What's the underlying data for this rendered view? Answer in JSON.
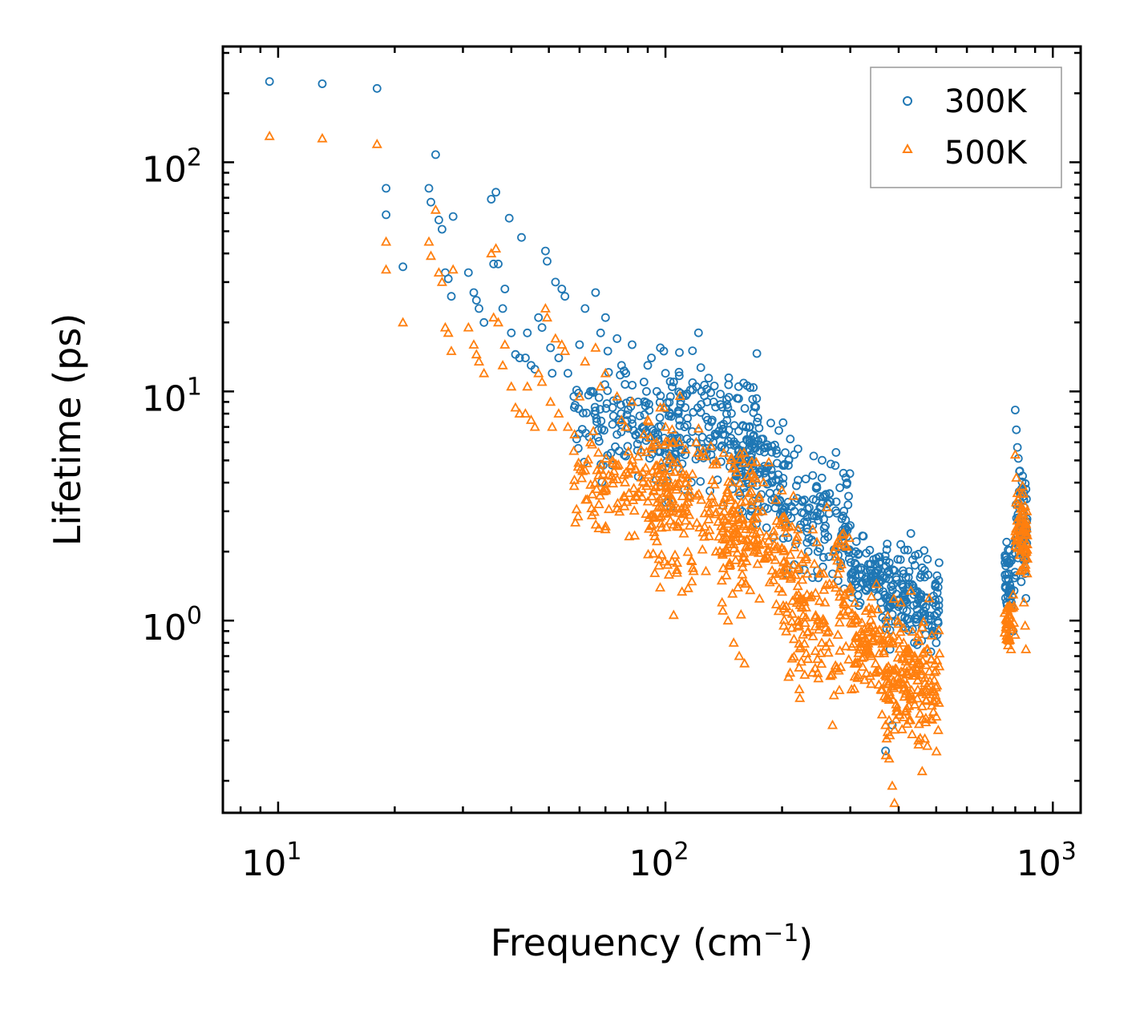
{
  "chart_data": {
    "type": "scatter",
    "title": "",
    "xlabel": "Frequency",
    "xlabel_unit": "(cm",
    "xlabel_unit_exp": "−1",
    "xlabel_unit_close": ")",
    "ylabel": "Lifetime (ps)",
    "xscale": "log",
    "yscale": "log",
    "xlim": [
      7.2,
      1180
    ],
    "ylim": [
      0.145,
      320
    ],
    "x_ticks": [
      {
        "value": 10,
        "base": "10",
        "exp": "1"
      },
      {
        "value": 100,
        "base": "10",
        "exp": "2"
      },
      {
        "value": 1000,
        "base": "10",
        "exp": "3"
      }
    ],
    "y_ticks": [
      {
        "value": 1,
        "base": "10",
        "exp": "0"
      },
      {
        "value": 10,
        "base": "10",
        "exp": "1"
      },
      {
        "value": 100,
        "base": "10",
        "exp": "2"
      }
    ],
    "legend_position": "top-right",
    "series": [
      {
        "name": "300K",
        "marker": "circle",
        "color": "#1f77b4",
        "points": [
          [
            9.5,
            225
          ],
          [
            13.0,
            220
          ],
          [
            18.0,
            210
          ],
          [
            19.0,
            77
          ],
          [
            19.0,
            59
          ],
          [
            21.0,
            35
          ],
          [
            24.5,
            77
          ],
          [
            24.8,
            67
          ],
          [
            25.5,
            108
          ],
          [
            26.0,
            56
          ],
          [
            26.5,
            51
          ],
          [
            27.0,
            33
          ],
          [
            27.5,
            31
          ],
          [
            28.0,
            26
          ],
          [
            28.3,
            58
          ],
          [
            31.0,
            33
          ],
          [
            32.0,
            27
          ],
          [
            32.5,
            25
          ],
          [
            33.0,
            23
          ],
          [
            34.0,
            20
          ],
          [
            35.5,
            69
          ],
          [
            36.0,
            36
          ],
          [
            36.5,
            74
          ],
          [
            37.0,
            36
          ],
          [
            38.0,
            23
          ],
          [
            38.5,
            28
          ],
          [
            39.5,
            57
          ],
          [
            40.0,
            18
          ],
          [
            41.0,
            14.5
          ],
          [
            42.0,
            14
          ],
          [
            42.5,
            47
          ],
          [
            43.5,
            14
          ],
          [
            44.0,
            18
          ],
          [
            45.0,
            13
          ],
          [
            46.0,
            12.5
          ],
          [
            47.0,
            21
          ],
          [
            48.0,
            19
          ],
          [
            49.0,
            41
          ],
          [
            49.5,
            37
          ],
          [
            50.5,
            15.5
          ],
          [
            51.0,
            12
          ],
          [
            52.0,
            30
          ],
          [
            53.0,
            14
          ],
          [
            54.0,
            28
          ],
          [
            55.0,
            26
          ],
          [
            56.0,
            12
          ],
          [
            58.0,
            9.5
          ],
          [
            60.0,
            16
          ],
          [
            62.0,
            23
          ],
          [
            64.0,
            10
          ],
          [
            66.0,
            27
          ],
          [
            68.0,
            18
          ],
          [
            70.0,
            21
          ],
          [
            71.0,
            15
          ],
          [
            73.0,
            8.5
          ],
          [
            75.0,
            17
          ],
          [
            77.0,
            13
          ],
          [
            79.0,
            12
          ],
          [
            82.0,
            16
          ],
          [
            85.0,
            9
          ],
          [
            88.0,
            11
          ],
          [
            90.0,
            13
          ],
          [
            92.0,
            14
          ],
          [
            95.0,
            10
          ],
          [
            97.0,
            15.5
          ],
          [
            99.0,
            15
          ],
          [
            100.0,
            12
          ],
          [
            103.0,
            9.5
          ],
          [
            105.0,
            11
          ],
          [
            108.0,
            8
          ],
          [
            112.0,
            7
          ],
          [
            116.0,
            6
          ],
          [
            120.0,
            10.5
          ],
          [
            124.0,
            10
          ],
          [
            128.0,
            9
          ],
          [
            132.0,
            7.5
          ],
          [
            136.0,
            6.5
          ],
          [
            140.0,
            5.8
          ],
          [
            146.0,
            5.2
          ],
          [
            152.0,
            5.0
          ],
          [
            158.0,
            5.5
          ],
          [
            164.0,
            5.0
          ],
          [
            170.0,
            5.9
          ],
          [
            175.0,
            5.5
          ],
          [
            180.0,
            4.4
          ],
          [
            186.0,
            3.6
          ],
          [
            192.0,
            3.1
          ],
          [
            198.0,
            2.9
          ],
          [
            204.0,
            2.6
          ],
          [
            210.0,
            6.2
          ],
          [
            215.0,
            5.3
          ],
          [
            220.0,
            4.1
          ],
          [
            226.0,
            3.3
          ],
          [
            232.0,
            2.7
          ],
          [
            240.0,
            4.3
          ],
          [
            246.0,
            3.8
          ],
          [
            252.0,
            3.1
          ],
          [
            258.0,
            2.4
          ],
          [
            264.0,
            1.9
          ],
          [
            270.0,
            1.6
          ],
          [
            276.0,
            3.3
          ],
          [
            282.0,
            3.8
          ],
          [
            288.0,
            4.4
          ],
          [
            292.0,
            4.2
          ],
          [
            296.0,
            3.2
          ],
          [
            300.0,
            2.6
          ],
          [
            310.0,
            2.0
          ],
          [
            320.0,
            1.7
          ],
          [
            330.0,
            1.55
          ],
          [
            340.0,
            1.5
          ],
          [
            350.0,
            1.45
          ],
          [
            360.0,
            1.2
          ],
          [
            370.0,
            1.0
          ],
          [
            380.0,
            0.75
          ],
          [
            390.0,
            1.65
          ],
          [
            398.0,
            1.85
          ],
          [
            405.0,
            2.15
          ],
          [
            412.0,
            1.6
          ],
          [
            420.0,
            1.2
          ],
          [
            430.0,
            2.4
          ],
          [
            440.0,
            1.35
          ],
          [
            450.0,
            1.95
          ],
          [
            460.0,
            1.7
          ],
          [
            470.0,
            1.25
          ],
          [
            480.0,
            1.05
          ],
          [
            490.0,
            0.9
          ],
          [
            500.0,
            0.8
          ],
          [
            370.0,
            0.27
          ],
          [
            385.0,
            0.35
          ],
          [
            760.0,
            2.2
          ],
          [
            770.0,
            1.6
          ],
          [
            780.0,
            1.15
          ],
          [
            790.0,
            0.9
          ],
          [
            800.0,
            8.3
          ],
          [
            805.0,
            6.8
          ],
          [
            810.0,
            5.7
          ],
          [
            815.0,
            5.1
          ],
          [
            822.0,
            4.5
          ],
          [
            830.0,
            3.7
          ],
          [
            836.0,
            2.9
          ],
          [
            842.0,
            2.2
          ],
          [
            848.0,
            1.65
          ],
          [
            852.0,
            1.25
          ]
        ],
        "clusters": [
          [
            58,
            110,
            7.0,
            1.7,
            140
          ],
          [
            100,
            175,
            7.0,
            2.2,
            160
          ],
          [
            150,
            205,
            4.5,
            1.8,
            110
          ],
          [
            200,
            300,
            2.6,
            2.0,
            120
          ],
          [
            300,
            360,
            1.6,
            1.4,
            70
          ],
          [
            360,
            420,
            1.35,
            1.6,
            70
          ],
          [
            420,
            510,
            1.2,
            1.6,
            80
          ],
          [
            750,
            800,
            1.55,
            1.4,
            40
          ],
          [
            800,
            860,
            2.6,
            1.7,
            60
          ]
        ]
      },
      {
        "name": "500K",
        "marker": "triangle",
        "color": "#ff7f0e",
        "points": [
          [
            9.5,
            130
          ],
          [
            13.0,
            127
          ],
          [
            18.0,
            120
          ],
          [
            19.0,
            45
          ],
          [
            19.0,
            34
          ],
          [
            21.0,
            20
          ],
          [
            24.5,
            45
          ],
          [
            24.8,
            39
          ],
          [
            25.5,
            62
          ],
          [
            26.0,
            33
          ],
          [
            26.5,
            30
          ],
          [
            27.0,
            19
          ],
          [
            27.5,
            18
          ],
          [
            28.0,
            15
          ],
          [
            28.3,
            34
          ],
          [
            31.0,
            19
          ],
          [
            32.0,
            16
          ],
          [
            32.5,
            14.5
          ],
          [
            33.0,
            13.5
          ],
          [
            34.0,
            12
          ],
          [
            35.5,
            40
          ],
          [
            36.0,
            21
          ],
          [
            36.5,
            42
          ],
          [
            37.0,
            20
          ],
          [
            38.0,
            13
          ],
          [
            38.5,
            16
          ],
          [
            40.0,
            10.5
          ],
          [
            41.0,
            8.5
          ],
          [
            42.0,
            8
          ],
          [
            43.5,
            8
          ],
          [
            44.0,
            10.5
          ],
          [
            45.0,
            7.5
          ],
          [
            46.0,
            7
          ],
          [
            47.0,
            12
          ],
          [
            48.0,
            11
          ],
          [
            49.0,
            23
          ],
          [
            49.5,
            21
          ],
          [
            50.5,
            9
          ],
          [
            51.0,
            7
          ],
          [
            52.0,
            17
          ],
          [
            53.0,
            8
          ],
          [
            54.0,
            16
          ],
          [
            55.0,
            15
          ],
          [
            56.0,
            7
          ],
          [
            58.0,
            5.5
          ],
          [
            60.0,
            9.5
          ],
          [
            62.0,
            13.5
          ],
          [
            64.0,
            6
          ],
          [
            66.0,
            15.5
          ],
          [
            68.0,
            10.5
          ],
          [
            70.0,
            12
          ],
          [
            73.0,
            5
          ],
          [
            75.0,
            9.5
          ],
          [
            77.0,
            7.5
          ],
          [
            79.0,
            7
          ],
          [
            82.0,
            9
          ],
          [
            85.0,
            5.2
          ],
          [
            88.0,
            6.5
          ],
          [
            90.0,
            7.5
          ],
          [
            95.0,
            6
          ],
          [
            97.0,
            8.5
          ],
          [
            99.0,
            8.5
          ],
          [
            100.0,
            7
          ],
          [
            105.0,
            6
          ],
          [
            110.0,
            4.5
          ],
          [
            115.0,
            3.5
          ],
          [
            120.0,
            6
          ],
          [
            125.0,
            5.5
          ],
          [
            130.0,
            3.0
          ],
          [
            135.0,
            2.0
          ],
          [
            140.0,
            1.2
          ],
          [
            145.0,
            1.0
          ],
          [
            150.0,
            0.8
          ],
          [
            155.0,
            0.7
          ],
          [
            160.0,
            0.65
          ],
          [
            166.0,
            2.5
          ],
          [
            172.0,
            2.8
          ],
          [
            178.0,
            3.0
          ],
          [
            184.0,
            2.0
          ],
          [
            190.0,
            1.5
          ],
          [
            196.0,
            1.1
          ],
          [
            202.0,
            0.95
          ],
          [
            208.0,
            2.6
          ],
          [
            214.0,
            3.5
          ],
          [
            220.0,
            2.5
          ],
          [
            226.0,
            1.8
          ],
          [
            232.0,
            1.3
          ],
          [
            240.0,
            2.5
          ],
          [
            246.0,
            2.2
          ],
          [
            252.0,
            1.6
          ],
          [
            258.0,
            1.2
          ],
          [
            264.0,
            0.9
          ],
          [
            270.0,
            0.35
          ],
          [
            276.0,
            1.9
          ],
          [
            282.0,
            2.2
          ],
          [
            288.0,
            2.4
          ],
          [
            294.0,
            2.1
          ],
          [
            300.0,
            1.4
          ],
          [
            310.0,
            1.0
          ],
          [
            320.0,
            0.8
          ],
          [
            330.0,
            0.75
          ],
          [
            340.0,
            0.7
          ],
          [
            350.0,
            0.6
          ],
          [
            360.0,
            0.5
          ],
          [
            370.0,
            0.35
          ],
          [
            378.0,
            0.25
          ],
          [
            385.0,
            0.19
          ],
          [
            390.0,
            0.16
          ],
          [
            398.0,
            1.0
          ],
          [
            405.0,
            1.2
          ],
          [
            412.0,
            0.8
          ],
          [
            420.0,
            0.6
          ],
          [
            430.0,
            1.35
          ],
          [
            440.0,
            0.7
          ],
          [
            450.0,
            0.3
          ],
          [
            460.0,
            0.22
          ],
          [
            470.0,
            0.36
          ],
          [
            480.0,
            0.6
          ],
          [
            490.0,
            0.5
          ],
          [
            500.0,
            0.45
          ],
          [
            760.0,
            1.0
          ],
          [
            770.0,
            0.85
          ],
          [
            780.0,
            0.75
          ],
          [
            790.0,
            1.3
          ],
          [
            800.0,
            5.3
          ],
          [
            805.0,
            4.2
          ],
          [
            810.0,
            3.6
          ],
          [
            815.0,
            3.2
          ],
          [
            822.0,
            2.7
          ],
          [
            830.0,
            2.2
          ],
          [
            836.0,
            1.7
          ],
          [
            842.0,
            1.2
          ],
          [
            848.0,
            0.95
          ],
          [
            852.0,
            0.75
          ]
        ],
        "clusters": [
          [
            58,
            105,
            4.0,
            1.8,
            130
          ],
          [
            90,
            175,
            3.0,
            2.4,
            200
          ],
          [
            140,
            205,
            2.2,
            1.9,
            110
          ],
          [
            200,
            300,
            1.2,
            2.4,
            150
          ],
          [
            300,
            360,
            0.75,
            1.8,
            80
          ],
          [
            360,
            420,
            0.55,
            1.9,
            90
          ],
          [
            420,
            510,
            0.55,
            1.9,
            100
          ],
          [
            750,
            800,
            0.95,
            1.3,
            40
          ],
          [
            800,
            860,
            2.4,
            1.7,
            60
          ]
        ]
      }
    ]
  }
}
